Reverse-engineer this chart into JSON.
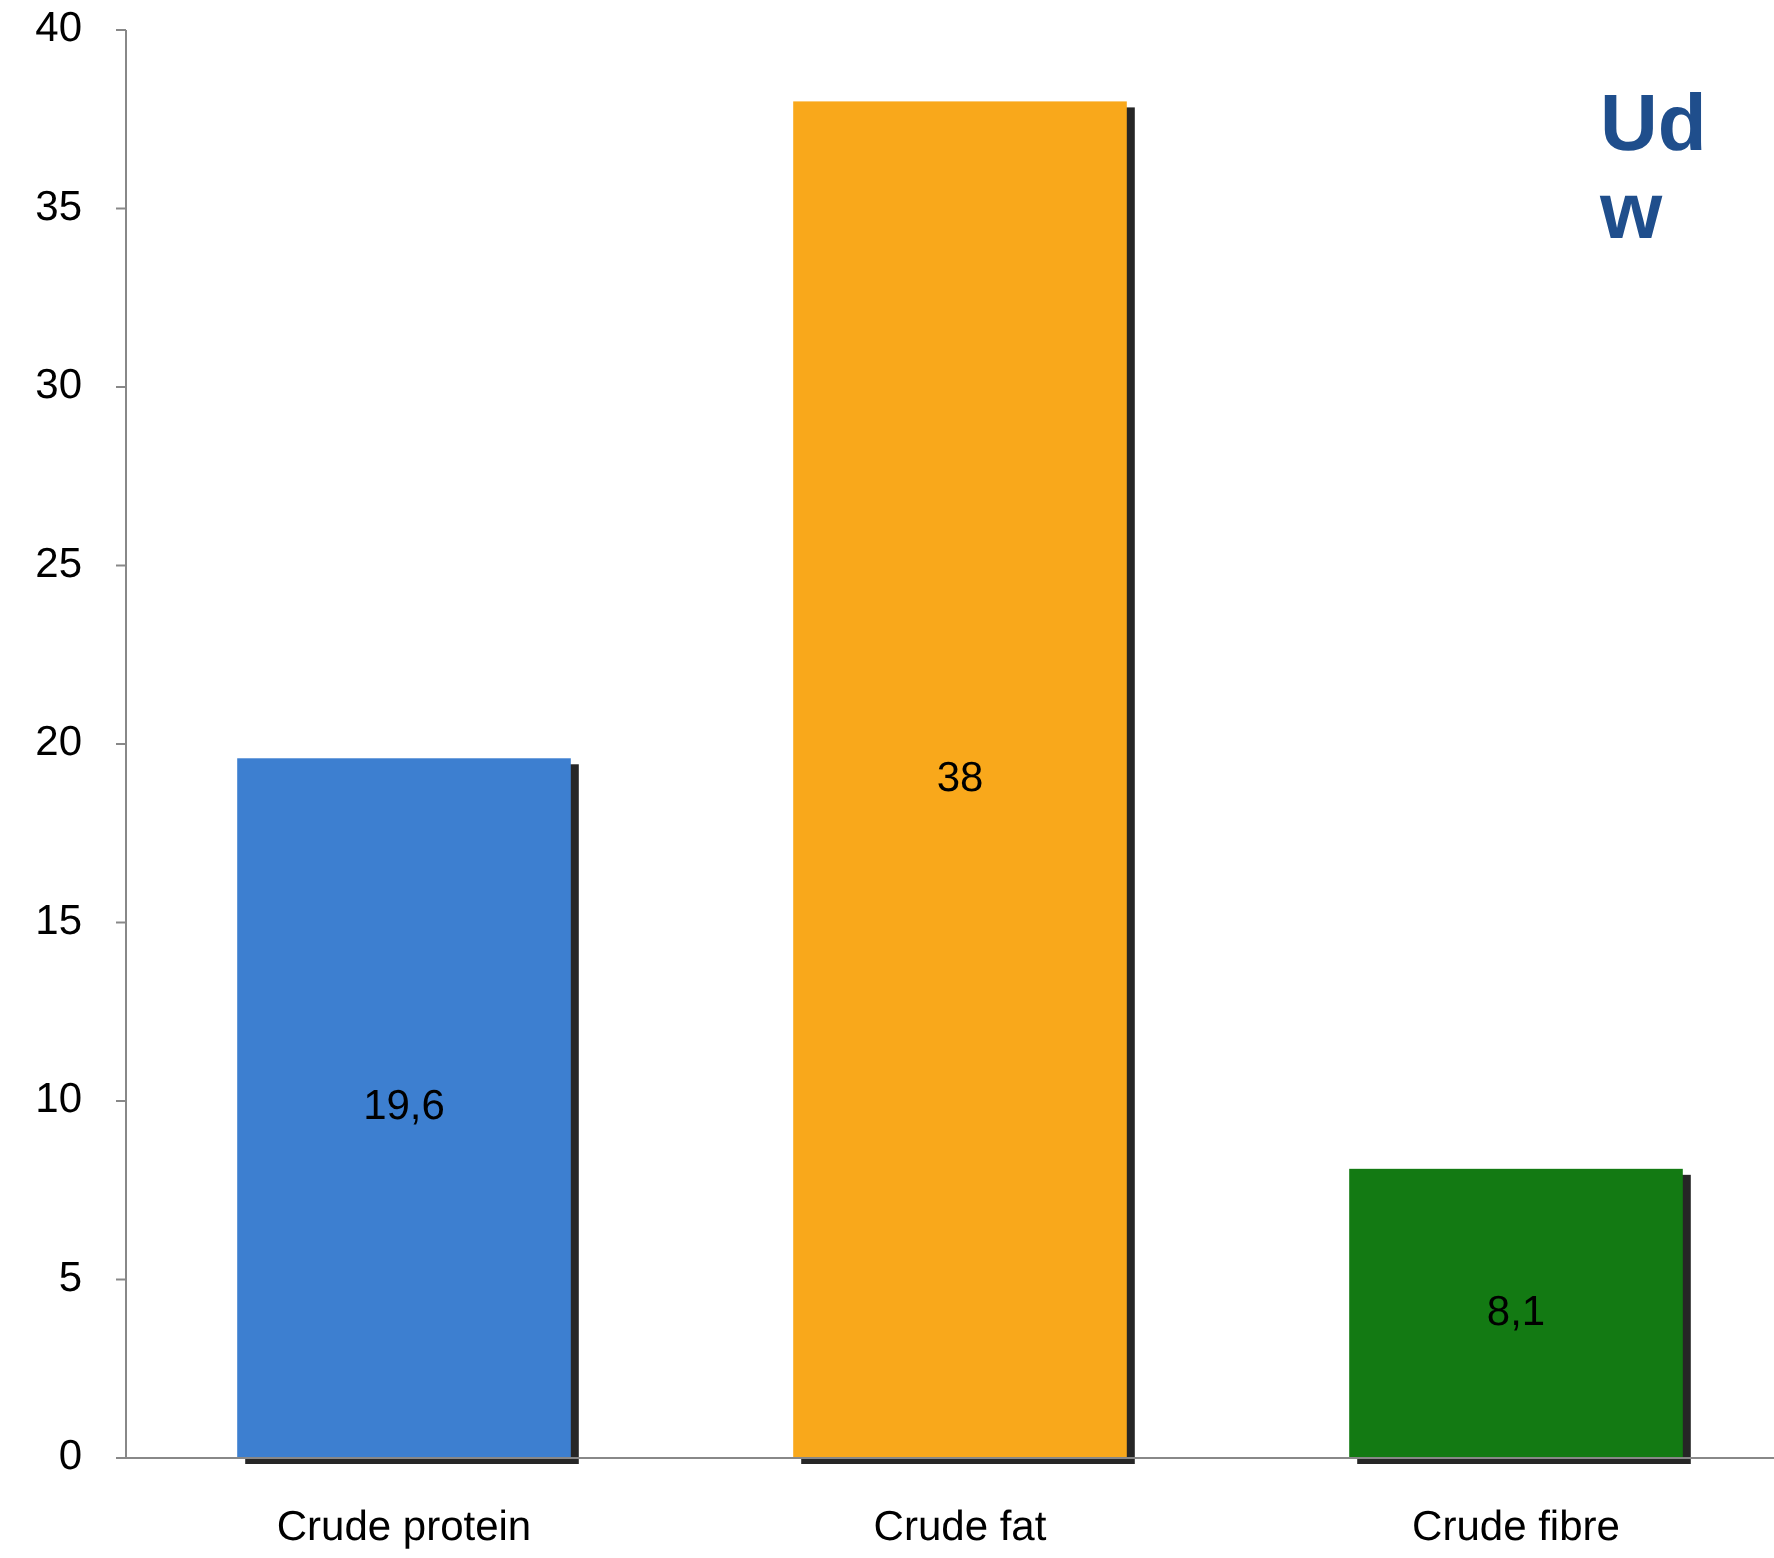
{
  "chart_data": {
    "type": "bar",
    "title": "Ud\nw",
    "categories": [
      "Crude protein",
      "Crude fat",
      "Crude fibre"
    ],
    "values": [
      19.6,
      38,
      8.1
    ],
    "colors": [
      "#3d7fd0",
      "#f9a81b",
      "#137a13"
    ],
    "value_labels": [
      "19,6",
      "38",
      "8,1"
    ],
    "ylim": [
      0,
      40
    ],
    "yticks": [
      0,
      5,
      10,
      15,
      20,
      25,
      30,
      35,
      40
    ],
    "grid": false
  }
}
